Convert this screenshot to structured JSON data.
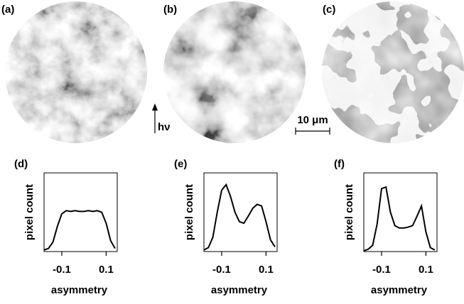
{
  "images": [
    {
      "label": "(a)"
    },
    {
      "label": "(b)"
    },
    {
      "label": "(c)"
    }
  ],
  "annotations": {
    "photon": "hν",
    "scale_bar": "10 μm"
  },
  "chart_data": [
    {
      "type": "line",
      "label": "(d)",
      "xlabel": "asymmetry",
      "ylabel": "pixel count",
      "x": [
        -0.18,
        -0.16,
        -0.14,
        -0.12,
        -0.1,
        -0.08,
        -0.06,
        -0.04,
        -0.02,
        0,
        0.02,
        0.04,
        0.06,
        0.08,
        0.1,
        0.12,
        0.14
      ],
      "values": [
        2,
        4,
        12,
        32,
        48,
        52,
        51,
        52,
        51,
        51,
        52,
        51,
        52,
        50,
        36,
        14,
        4
      ],
      "color": "#000000",
      "xlim": [
        -0.18,
        0.15
      ],
      "ylim": [
        0,
        100
      ],
      "xticks": [
        -0.1,
        0.1
      ]
    },
    {
      "type": "line",
      "label": "(e)",
      "xlabel": "asymmetry",
      "ylabel": "pixel count",
      "x": [
        -0.18,
        -0.16,
        -0.14,
        -0.12,
        -0.1,
        -0.08,
        -0.06,
        -0.04,
        -0.02,
        0,
        0.02,
        0.04,
        0.06,
        0.08,
        0.1,
        0.12,
        0.14
      ],
      "values": [
        2,
        5,
        18,
        50,
        78,
        85,
        70,
        50,
        38,
        36,
        45,
        55,
        60,
        58,
        38,
        15,
        6
      ],
      "color": "#000000",
      "xlim": [
        -0.18,
        0.15
      ],
      "ylim": [
        0,
        100
      ],
      "xticks": [
        -0.1,
        0.1
      ]
    },
    {
      "type": "line",
      "label": "(f)",
      "xlabel": "asymmetry",
      "ylabel": "pixel count",
      "x": [
        -0.18,
        -0.16,
        -0.14,
        -0.12,
        -0.1,
        -0.08,
        -0.06,
        -0.04,
        -0.02,
        0,
        0.02,
        0.04,
        0.06,
        0.08,
        0.1,
        0.12,
        0.14
      ],
      "values": [
        1,
        3,
        8,
        35,
        80,
        82,
        50,
        33,
        30,
        30,
        31,
        33,
        45,
        58,
        25,
        5,
        2
      ],
      "color": "#000000",
      "xlim": [
        -0.18,
        0.15
      ],
      "ylim": [
        0,
        100
      ],
      "xticks": [
        -0.1,
        0.1
      ]
    }
  ]
}
